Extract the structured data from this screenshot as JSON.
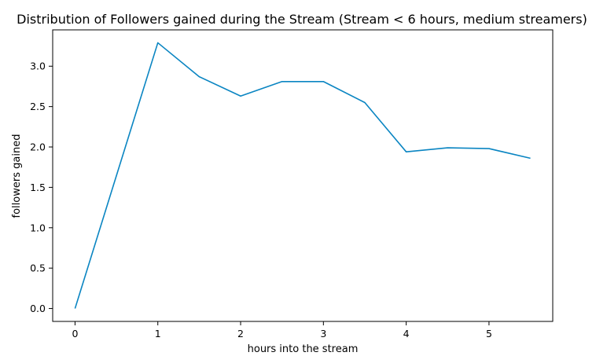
{
  "chart_data": {
    "type": "line",
    "title": "Distribution of Followers gained during the Stream (Stream < 6 hours, medium streamers)",
    "xlabel": "hours into the stream",
    "ylabel": "followers gained",
    "xlim": [
      -0.27,
      5.77
    ],
    "ylim": [
      -0.16,
      3.45
    ],
    "x_ticks": [
      0,
      1,
      2,
      3,
      4,
      5
    ],
    "x_tick_labels": [
      "0",
      "1",
      "2",
      "3",
      "4",
      "5"
    ],
    "y_ticks": [
      0.0,
      0.5,
      1.0,
      1.5,
      2.0,
      2.5,
      3.0
    ],
    "y_tick_labels": [
      "0.0",
      "0.5",
      "1.0",
      "1.5",
      "2.0",
      "2.5",
      "3.0"
    ],
    "grid": false,
    "series": [
      {
        "color": "#0a85c2",
        "x": [
          0,
          1,
          1.5,
          2,
          2.5,
          3,
          3.5,
          4,
          4.5,
          5,
          5.5
        ],
        "y": [
          0.0,
          3.29,
          2.87,
          2.63,
          2.81,
          2.81,
          2.55,
          1.94,
          1.99,
          1.98,
          1.86
        ]
      }
    ]
  }
}
